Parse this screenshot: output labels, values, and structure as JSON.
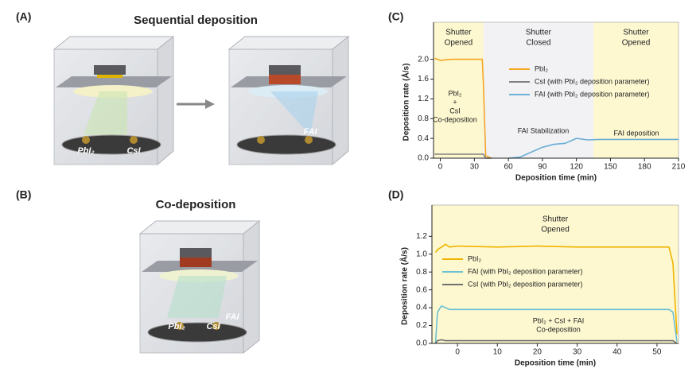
{
  "panels": {
    "labels": [
      "(A)",
      "(B)",
      "(C)",
      "(D)"
    ],
    "titles": [
      "Sequential deposition",
      "Co-deposition"
    ],
    "sources": [
      "PbI₂",
      "CsI",
      "FAI",
      "PbI₂",
      "CsI",
      "FAI"
    ]
  },
  "chart_data": [
    {
      "type": "line",
      "xlabel": "Deposition time (min)",
      "ylabel": "Deposition rate (Å/s)",
      "x": [
        -5,
        0,
        10,
        20,
        30,
        37,
        38,
        40,
        45,
        60,
        70,
        80,
        90,
        100,
        110,
        120,
        130,
        140,
        150,
        160,
        170,
        180,
        190,
        200,
        210
      ],
      "xlim": [
        -6,
        210
      ],
      "xticks": [
        0,
        30,
        60,
        90,
        120,
        150,
        180,
        210
      ],
      "ylim": [
        0,
        2.75
      ],
      "yticks": [
        {
          "value": 0,
          "label": "0.0"
        },
        0.4,
        0.8,
        1.2,
        1.6,
        {
          "value": 2,
          "label": "2.0"
        }
      ],
      "series": [
        {
          "name": "PbI₂",
          "color": "#f5a623",
          "values": [
            2.02,
            1.98,
            2.0,
            2.0,
            2.0,
            2.0,
            1.5,
            0.05,
            0.0,
            null,
            null,
            null,
            null,
            null,
            null,
            null,
            null,
            null,
            null,
            null,
            null,
            null,
            null,
            null,
            null
          ]
        },
        {
          "name": "CsI (with PbI₂ deposition parameter)",
          "color": "#808080",
          "values": [
            0.08,
            0.08,
            0.08,
            0.08,
            0.08,
            0.08,
            0.08,
            0.0,
            0.0,
            null,
            null,
            null,
            null,
            null,
            null,
            null,
            null,
            null,
            null,
            null,
            null,
            null,
            null,
            null,
            null
          ]
        },
        {
          "name": "FAI (with PbI₂ deposition parameter)",
          "color": "#6baed6",
          "values": [
            null,
            null,
            null,
            null,
            null,
            null,
            null,
            null,
            null,
            0.0,
            0.02,
            0.12,
            0.22,
            0.28,
            0.3,
            0.4,
            0.37,
            0.38,
            0.38,
            0.38,
            0.38,
            0.38,
            0.38,
            0.38,
            0.38
          ]
        }
      ],
      "regions": [
        {
          "lines": [
            "Shutter",
            "Opened"
          ],
          "range": [
            -6,
            38
          ],
          "color": "#fdf8d0"
        },
        {
          "lines": [
            "Shutter",
            "Closed"
          ],
          "range": [
            38,
            135
          ],
          "color": "#f2f2f4"
        },
        {
          "lines": [
            "Shutter",
            "Opened"
          ],
          "range": [
            135,
            210
          ],
          "color": "#fdf8d0"
        }
      ],
      "annotations": [
        [
          "PbI₂",
          "+",
          "CsI",
          "Co-deposition"
        ],
        [
          "FAI Stabilization"
        ],
        [
          "FAI deposition"
        ]
      ]
    },
    {
      "type": "line",
      "xlabel": "Deposition time (min)",
      "ylabel": "Deposition rate (Å/s)",
      "x": [
        -5.5,
        -5,
        -4,
        -3,
        -2,
        0,
        10,
        20,
        30,
        40,
        50,
        53,
        54,
        55
      ],
      "xlim": [
        -6.4,
        55.4
      ],
      "xticks": [
        0,
        10,
        20,
        30,
        40,
        50
      ],
      "ylim": [
        0,
        1.55
      ],
      "yticks": [
        {
          "value": 0,
          "label": "0.0"
        },
        0.2,
        0.4,
        0.6,
        0.8,
        {
          "value": 1,
          "label": "1.0"
        },
        1.2
      ],
      "series": [
        {
          "name": "PbI₂",
          "color": "#f0b400",
          "values": [
            1.02,
            1.05,
            1.08,
            1.11,
            1.08,
            1.09,
            1.08,
            1.09,
            1.08,
            1.08,
            1.08,
            1.08,
            0.9,
            0.1
          ]
        },
        {
          "name": "FAI (with PbI₂ deposition parameter)",
          "color": "#6bc0d6",
          "values": [
            0.0,
            0.35,
            0.42,
            0.4,
            0.38,
            0.38,
            0.38,
            0.38,
            0.38,
            0.38,
            0.38,
            0.38,
            0.35,
            0.02
          ]
        },
        {
          "name": "CsI (with PbI₂ deposition parameter)",
          "color": "#707070",
          "values": [
            0.0,
            0.03,
            0.04,
            0.03,
            0.03,
            0.03,
            0.03,
            0.03,
            0.03,
            0.03,
            0.03,
            0.03,
            0.03,
            0.0
          ]
        }
      ],
      "regions": [
        {
          "lines": [
            "Shutter",
            "Opened"
          ],
          "range": [
            -6.4,
            55.4
          ],
          "color": "#fdf8d0"
        }
      ],
      "annotations": [
        [
          "PbI₂ + CsI + FAI",
          "Co-deposition"
        ]
      ]
    }
  ]
}
